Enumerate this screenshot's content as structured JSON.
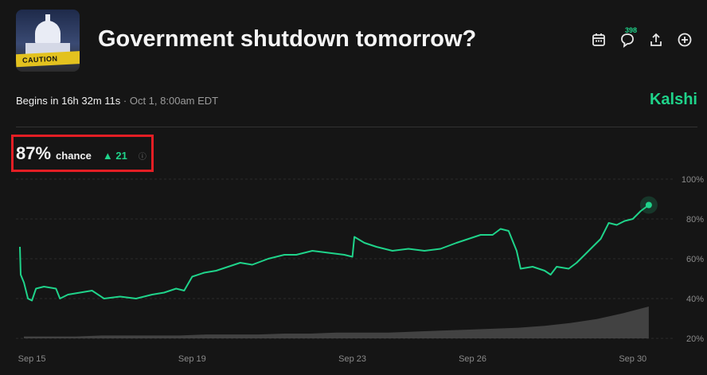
{
  "market": {
    "title": "Government shutdown tomorrow?",
    "thumbnail_text": "CAUTION",
    "begins_prefix": "Begins in 16h 32m 11s",
    "begins_date": " · Oct 1, 8:00am EDT",
    "brand": "Kalshi",
    "comment_count": "398",
    "chance_value": "87%",
    "chance_label": "chance",
    "change_value": "▲ 21",
    "info_icon": "ⓘ"
  },
  "icons": [
    "calendar-icon",
    "comment-icon",
    "share-icon",
    "add-icon"
  ],
  "colors": {
    "accent": "#1fd38a",
    "background": "#151515",
    "highlight_box": "#e31e24"
  },
  "chart_data": {
    "type": "line",
    "title": "",
    "xlabel": "",
    "ylabel": "",
    "ylim": [
      20,
      100
    ],
    "ytick_labels": [
      "100%",
      "80%",
      "60%",
      "40%",
      "20%"
    ],
    "yticks": [
      100,
      80,
      60,
      40,
      20
    ],
    "xtick_labels": [
      "Sep 15",
      "Sep 19",
      "Sep 23",
      "Sep 26",
      "Sep 30"
    ],
    "xticks": [
      15,
      19,
      23,
      26,
      30
    ],
    "xlim": [
      14.6,
      30.8
    ],
    "grid": true,
    "series": [
      {
        "values": [
          [
            14.7,
            66
          ],
          [
            14.72,
            52
          ],
          [
            14.8,
            48
          ],
          [
            14.9,
            40
          ],
          [
            15.0,
            39
          ],
          [
            15.1,
            45
          ],
          [
            15.3,
            46
          ],
          [
            15.6,
            45
          ],
          [
            15.7,
            40
          ],
          [
            15.9,
            42
          ],
          [
            16.2,
            43
          ],
          [
            16.5,
            44
          ],
          [
            16.8,
            40
          ],
          [
            17.2,
            41
          ],
          [
            17.6,
            40
          ],
          [
            18.0,
            42
          ],
          [
            18.3,
            43
          ],
          [
            18.6,
            45
          ],
          [
            18.8,
            44
          ],
          [
            19.0,
            51
          ],
          [
            19.3,
            53
          ],
          [
            19.6,
            54
          ],
          [
            19.9,
            56
          ],
          [
            20.2,
            58
          ],
          [
            20.5,
            57
          ],
          [
            20.9,
            60
          ],
          [
            21.3,
            62
          ],
          [
            21.6,
            62
          ],
          [
            22.0,
            64
          ],
          [
            22.4,
            63
          ],
          [
            22.8,
            62
          ],
          [
            23.0,
            61
          ],
          [
            23.05,
            71
          ],
          [
            23.3,
            68
          ],
          [
            23.6,
            66
          ],
          [
            24.0,
            64
          ],
          [
            24.4,
            65
          ],
          [
            24.8,
            64
          ],
          [
            25.2,
            65
          ],
          [
            25.6,
            68
          ],
          [
            25.9,
            70
          ],
          [
            26.2,
            72
          ],
          [
            26.5,
            72
          ],
          [
            26.7,
            75
          ],
          [
            26.9,
            74
          ],
          [
            27.1,
            64
          ],
          [
            27.2,
            55
          ],
          [
            27.5,
            56
          ],
          [
            27.8,
            54
          ],
          [
            27.95,
            52
          ],
          [
            28.1,
            56
          ],
          [
            28.4,
            55
          ],
          [
            28.6,
            58
          ],
          [
            28.8,
            62
          ],
          [
            29.0,
            66
          ],
          [
            29.2,
            70
          ],
          [
            29.4,
            78
          ],
          [
            29.6,
            77
          ],
          [
            29.8,
            79
          ],
          [
            30.0,
            80
          ],
          [
            30.2,
            84
          ],
          [
            30.4,
            87
          ]
        ]
      }
    ],
    "volume": [
      2,
      2,
      2,
      3,
      3,
      3,
      3,
      4,
      4,
      4,
      5,
      5,
      6,
      6,
      6,
      7,
      8,
      9,
      10,
      11,
      13,
      16,
      20,
      26,
      33
    ]
  }
}
